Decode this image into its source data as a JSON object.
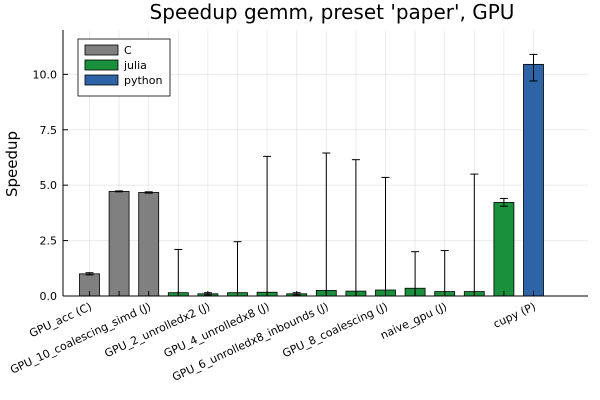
{
  "chart_data": {
    "type": "bar",
    "title": "Speedup gemm, preset 'paper', GPU",
    "xlabel": "",
    "ylabel": "Speedup",
    "ylim": [
      0,
      12.0
    ],
    "yticks": [
      0.0,
      2.5,
      5.0,
      7.5,
      10.0
    ],
    "ytick_labels": [
      "0.0",
      "2.5",
      "5.0",
      "7.5",
      "10.0"
    ],
    "grid": true,
    "legend_position": "top-left",
    "series": [
      {
        "name": "C",
        "color": "#808080"
      },
      {
        "name": "julia",
        "color": "#1a8f3c"
      },
      {
        "name": "python",
        "color": "#2d64a5"
      }
    ],
    "bars": [
      {
        "label": "GPU_acc (C)",
        "series": "C",
        "value": 1.0,
        "err_low": 0.95,
        "err_high": 1.05
      },
      {
        "label": "",
        "series": "C",
        "value": 4.72,
        "err_low": 4.7,
        "err_high": 4.74
      },
      {
        "label": "GPU_10_coalescing_simd (J)",
        "series": "C",
        "value": 4.67,
        "err_low": 4.64,
        "err_high": 4.7
      },
      {
        "label": "",
        "series": "julia",
        "value": 0.15,
        "err_low": 0.0,
        "err_high": 2.1
      },
      {
        "label": "GPU_2_unrolledx2 (J)",
        "series": "julia",
        "value": 0.1,
        "err_low": 0.05,
        "err_high": 0.15
      },
      {
        "label": "",
        "series": "julia",
        "value": 0.15,
        "err_low": 0.0,
        "err_high": 2.45
      },
      {
        "label": "GPU_4_unrolledx8 (J)",
        "series": "julia",
        "value": 0.17,
        "err_low": 0.0,
        "err_high": 6.3
      },
      {
        "label": "",
        "series": "julia",
        "value": 0.1,
        "err_low": 0.05,
        "err_high": 0.15
      },
      {
        "label": "GPU_6_unrolledx8_inbounds (J)",
        "series": "julia",
        "value": 0.25,
        "err_low": 0.0,
        "err_high": 6.45
      },
      {
        "label": "",
        "series": "julia",
        "value": 0.22,
        "err_low": 0.0,
        "err_high": 6.15
      },
      {
        "label": "GPU_8_coalescing (J)",
        "series": "julia",
        "value": 0.27,
        "err_low": 0.0,
        "err_high": 5.35
      },
      {
        "label": "",
        "series": "julia",
        "value": 0.35,
        "err_low": 0.0,
        "err_high": 2.0
      },
      {
        "label": "naive_gpu (J)",
        "series": "julia",
        "value": 0.2,
        "err_low": 0.0,
        "err_high": 2.05
      },
      {
        "label": "",
        "series": "julia",
        "value": 0.2,
        "err_low": 0.0,
        "err_high": 5.5
      },
      {
        "label": "",
        "series": "julia",
        "value": 4.22,
        "err_low": 4.05,
        "err_high": 4.4
      },
      {
        "label": "cupy (P)",
        "series": "python",
        "value": 10.45,
        "err_low": 9.7,
        "err_high": 10.9
      }
    ]
  }
}
